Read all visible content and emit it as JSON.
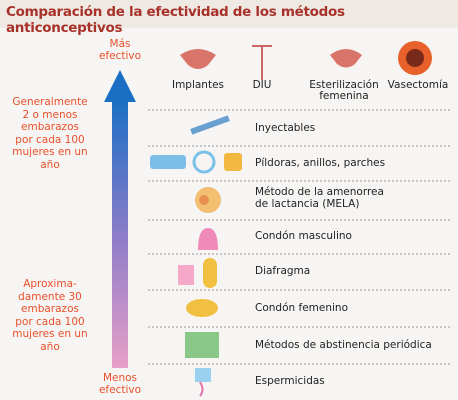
{
  "title": "Comparación de la efectividad de los métodos anticonceptivos",
  "arrow": {
    "top": "Más\nefectivo",
    "bottom": "Menos\nefectivo"
  },
  "notes": [
    "Generalmente\n2 o menos\nembarazos\npor cada 100\nmujeres en un\naño",
    "Aproxima-\ndamente 30\nembarazos\npor cada 100\nmujeres en un\naño"
  ],
  "top_methods": [
    "Implantes",
    "DIU",
    "Esterilización\nfemenina",
    "Vasectomía"
  ],
  "rows": [
    "Inyectables",
    "Píldoras, anillos, parches",
    "Método de la amenorrea\nde lactancia (MELA)",
    "Condón masculino",
    "Diafragma",
    "Condón femenino",
    "Métodos de abstinencia periódica",
    "Espermicidas"
  ]
}
